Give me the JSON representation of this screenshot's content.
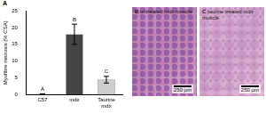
{
  "chart_data": {
    "type": "bar",
    "panel": "A",
    "y_label": "Myofibre necrosis (% CSA)",
    "categories": [
      "C57",
      "mdx",
      "Taurine mdx"
    ],
    "values": [
      0.2,
      18,
      4.5
    ],
    "error": [
      0.1,
      3,
      1
    ],
    "significance": [
      "A",
      "B",
      "C"
    ],
    "colors": [
      "#222222",
      "#444444",
      "#cccccc"
    ],
    "ylim": [
      0,
      25
    ],
    "yticks": [
      0,
      5,
      10,
      15,
      20,
      25
    ],
    "grid": false
  },
  "images": [
    {
      "panel": "B",
      "caption": "untreated mdx muscle",
      "scale_bar": "250 µm"
    },
    {
      "panel": "C",
      "caption": "taurine treated mdx muscle",
      "scale_bar": "250 µm"
    }
  ]
}
